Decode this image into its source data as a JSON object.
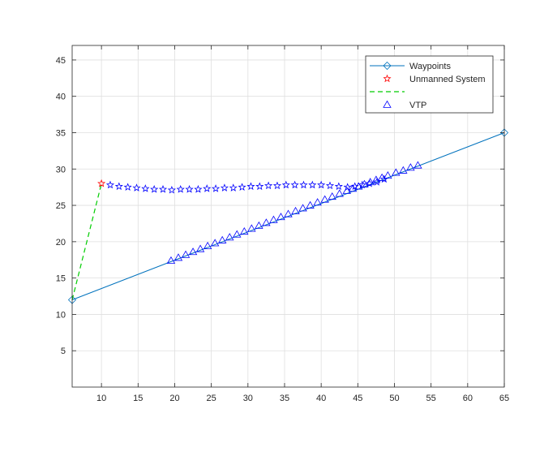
{
  "chart_data": {
    "type": "line",
    "title": "",
    "xlabel": "",
    "ylabel": "",
    "xlim": [
      6,
      65
    ],
    "ylim": [
      0,
      47
    ],
    "xticks": [
      10,
      15,
      20,
      25,
      30,
      35,
      40,
      45,
      50,
      55,
      60,
      65
    ],
    "yticks": [
      5,
      10,
      15,
      20,
      25,
      30,
      35,
      40,
      45
    ],
    "grid": true,
    "legend_position": "top-right",
    "colors": {
      "waypoints": "#0072BD",
      "unmanned": "#FF0000",
      "path": "#00CC00",
      "vtp": "#0000FF",
      "star_line": "#0000FF"
    },
    "series": [
      {
        "name": "Waypoints",
        "style": "line-diamond",
        "x": [
          6,
          65
        ],
        "y": [
          12,
          35
        ]
      },
      {
        "name": "Unmanned System",
        "style": "pentagram",
        "x": [
          10
        ],
        "y": [
          28
        ]
      },
      {
        "name": "",
        "style": "dashed",
        "x": [
          6,
          10
        ],
        "y": [
          12,
          28
        ]
      },
      {
        "name": "VTP",
        "style": "triangle",
        "x": [
          19.5,
          20.5,
          21.5,
          22.5,
          23.5,
          24.5,
          25.5,
          26.5,
          27.5,
          28.5,
          29.5,
          30.5,
          31.5,
          32.5,
          33.5,
          34.5,
          35.5,
          36.5,
          37.5,
          38.5,
          39.5,
          40.5,
          41.5,
          42.5,
          43.5,
          44.3,
          45.1,
          45.9,
          46.7,
          47.5,
          48.3,
          49.1,
          50.2,
          51.2,
          52.2,
          53.2
        ],
        "y": [
          17.4,
          17.8,
          18.2,
          18.6,
          19.0,
          19.4,
          19.8,
          20.2,
          20.6,
          21.0,
          21.4,
          21.8,
          22.2,
          22.6,
          23.0,
          23.4,
          23.8,
          24.2,
          24.6,
          25.0,
          25.4,
          25.8,
          26.2,
          26.6,
          27.0,
          27.3,
          27.6,
          27.9,
          28.2,
          28.5,
          28.8,
          29.1,
          29.5,
          29.8,
          30.2,
          30.5
        ]
      },
      {
        "name": "",
        "style": "pentagram",
        "x": [
          11.2,
          12.4,
          13.6,
          14.8,
          16.0,
          17.2,
          18.4,
          19.6,
          20.8,
          22.0,
          23.2,
          24.4,
          25.6,
          26.8,
          28.0,
          29.2,
          30.4,
          31.6,
          32.8,
          34.0,
          35.2,
          36.4,
          37.6,
          38.8,
          40.0,
          41.2,
          42.4,
          43.6,
          44.6,
          45.6,
          46.6,
          47.6,
          48.6
        ],
        "y": [
          27.8,
          27.6,
          27.5,
          27.4,
          27.3,
          27.2,
          27.2,
          27.1,
          27.2,
          27.2,
          27.2,
          27.3,
          27.3,
          27.4,
          27.4,
          27.5,
          27.6,
          27.6,
          27.7,
          27.7,
          27.8,
          27.8,
          27.8,
          27.8,
          27.8,
          27.7,
          27.6,
          27.5,
          27.6,
          27.8,
          28.0,
          28.2,
          28.6
        ]
      }
    ]
  }
}
